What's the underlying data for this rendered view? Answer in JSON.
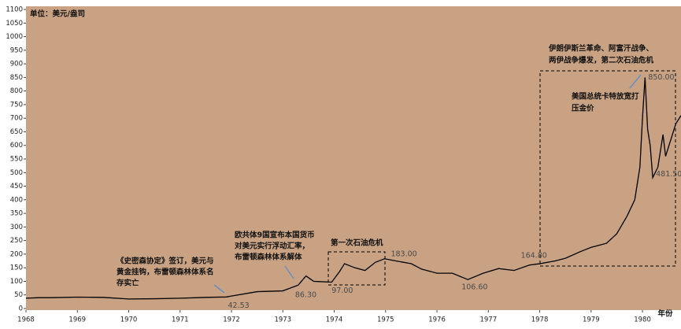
{
  "chart_data": {
    "type": "line",
    "y_label": "单位：美元/盎司",
    "x_label": "年份",
    "background": "#c8a283",
    "color": "#000000",
    "x": [
      1968.0,
      1968.25,
      1968.5,
      1969.0,
      1969.5,
      1970.0,
      1970.5,
      1971.0,
      1971.5,
      1971.9,
      1972.0,
      1972.5,
      1973.0,
      1973.3,
      1973.45,
      1973.6,
      1973.95,
      1974.1,
      1974.2,
      1974.4,
      1974.6,
      1974.8,
      1974.98,
      1975.2,
      1975.5,
      1975.7,
      1976.0,
      1976.3,
      1976.6,
      1976.9,
      1977.2,
      1977.5,
      1977.8,
      1978.0,
      1978.3,
      1978.5,
      1978.8,
      1979.0,
      1979.3,
      1979.5,
      1979.7,
      1979.85,
      1979.95,
      1980.0,
      1980.05,
      1980.1,
      1980.15,
      1980.2,
      1980.3,
      1980.4,
      1980.45,
      1980.55,
      1980.65,
      1980.75
    ],
    "values": [
      38,
      40,
      40,
      42,
      41,
      35,
      36,
      38,
      41,
      42.53,
      46,
      62,
      65,
      86.3,
      120,
      100,
      97,
      135,
      165,
      150,
      140,
      170,
      183,
      175,
      165,
      145,
      130,
      130,
      106.6,
      130,
      147,
      140,
      160,
      164.8,
      175,
      185,
      210,
      225,
      240,
      275,
      340,
      400,
      520,
      700,
      850,
      660,
      600,
      481.5,
      520,
      640,
      560,
      620,
      680,
      710
    ],
    "value_labels": [
      {
        "x": 1971.9,
        "value": 42.53,
        "label": "42.53"
      },
      {
        "x": 1973.3,
        "value": 86.3,
        "label": "86.30"
      },
      {
        "x": 1973.95,
        "value": 97,
        "label": "97.00"
      },
      {
        "x": 1974.98,
        "value": 183,
        "label": "183.00"
      },
      {
        "x": 1976.6,
        "value": 106.6,
        "label": "106.60"
      },
      {
        "x": 1978.0,
        "value": 164.8,
        "label": "164.80"
      },
      {
        "x": 1980.05,
        "value": 850,
        "label": "850.00"
      },
      {
        "x": 1980.2,
        "value": 481.5,
        "label": "481.50"
      }
    ],
    "annotations": [
      [
        "《史密森协定》签订，美元与",
        "黄金挂钩，布雷顿森林体系名",
        "存实亡"
      ],
      [
        "欧共体9国宣布本国货币",
        "对美元实行浮动汇率，",
        "布雷顿森林体系解体"
      ],
      [
        "第一次石油危机"
      ],
      [
        "伊朗伊斯兰革命、阿富汗战争、",
        "两伊战争爆发，第二次石油危机"
      ],
      [
        "美国总统卡特放宽打",
        "压金价"
      ]
    ],
    "xlim": [
      1968,
      1980.75
    ],
    "ylim": [
      0,
      1100
    ],
    "xticks": [
      1968,
      1969,
      1970,
      1971,
      1972,
      1973,
      1974,
      1975,
      1976,
      1977,
      1978,
      1979,
      1980
    ],
    "yticks": [
      0,
      50,
      100,
      150,
      200,
      250,
      300,
      350,
      400,
      450,
      500,
      550,
      600,
      650,
      700,
      750,
      800,
      850,
      900,
      950,
      1000,
      1050,
      1100
    ]
  }
}
